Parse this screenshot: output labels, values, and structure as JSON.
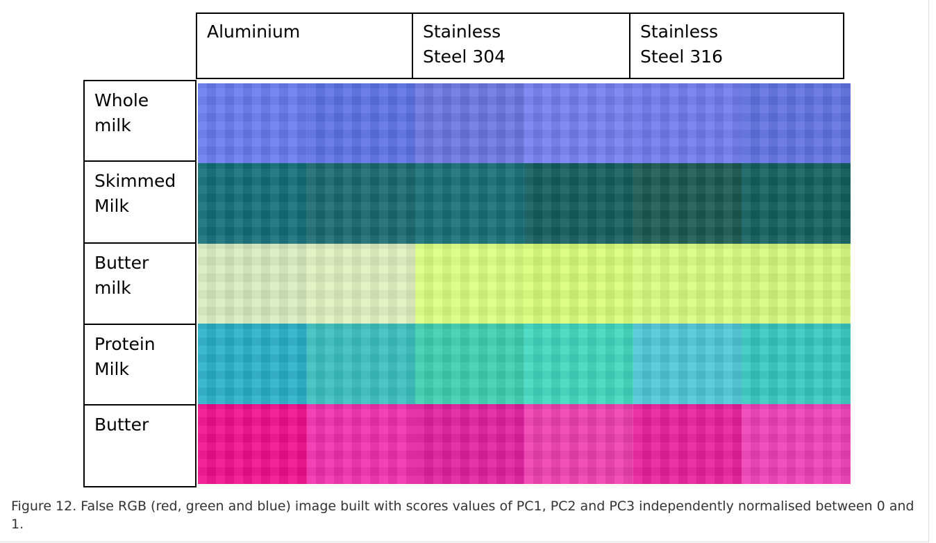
{
  "figure": {
    "columns": [
      "Aluminium",
      "Stainless\nSteel 304",
      "Stainless\nSteel 316"
    ],
    "rows": [
      "Whole\nmilk",
      "Skimmed\nMilk",
      "Butter\nmilk",
      "Protein\nMilk",
      "Butter"
    ],
    "caption": "Figure 12. False RGB (red, green and blue) image built with scores values of PC1, PC2 and PC3 independently normalised between 0 and 1."
  }
}
